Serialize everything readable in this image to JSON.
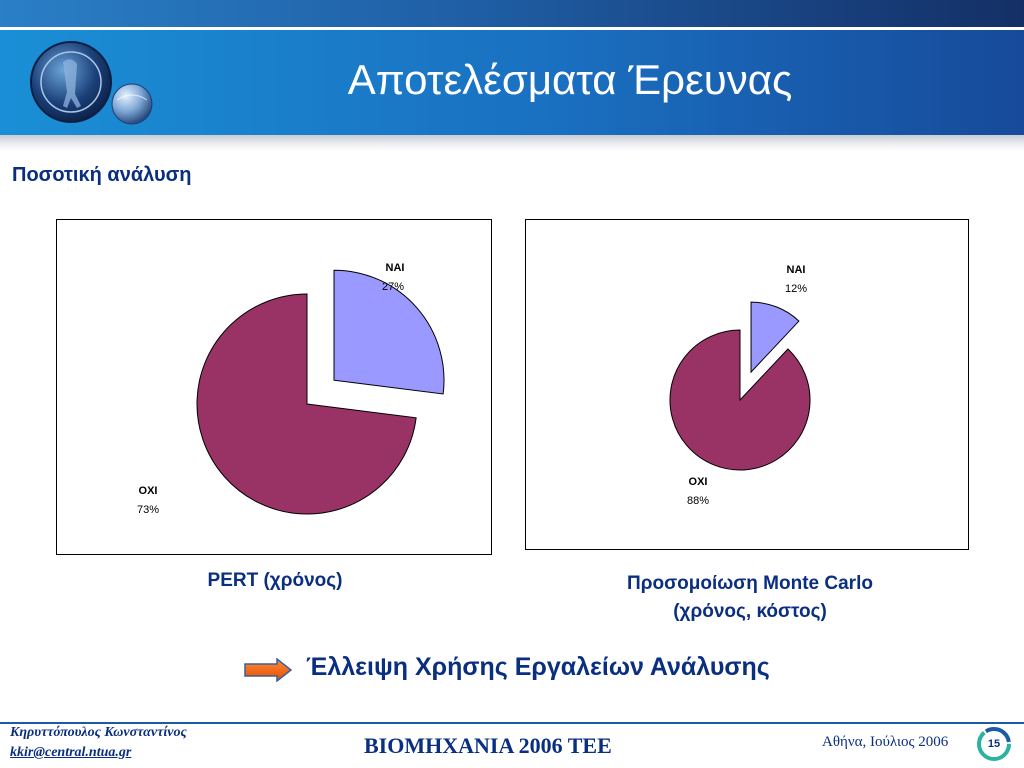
{
  "header": {
    "title": "Αποτελέσματα Έρευνας"
  },
  "subtitle": "Ποσοτική ανάλυση",
  "chart_data": [
    {
      "type": "pie",
      "categories": [
        "ΝΑΙ",
        "ΟΧΙ"
      ],
      "values": [
        27,
        73
      ],
      "labels": [
        "27%",
        "73%"
      ],
      "colors": [
        "#9999ff",
        "#993366"
      ],
      "exploded": "ΝΑΙ",
      "caption": "PERT (χρόνος)"
    },
    {
      "type": "pie",
      "categories": [
        "ΝΑΙ",
        "ΟΧΙ"
      ],
      "values": [
        12,
        88
      ],
      "labels": [
        "12%",
        "88%"
      ],
      "colors": [
        "#9999ff",
        "#993366"
      ],
      "exploded": "ΝΑΙ",
      "caption_line1": "Προσομοίωση Monte Carlo",
      "caption_line2": "(χρόνος, κόστος)"
    }
  ],
  "conclusion": "Έλλειψη Χρήσης Εργαλείων Ανάλυσης",
  "footer": {
    "author": "Κηρυττόπουλος  Κωνσταντίνος",
    "email": "kkir@central.ntua.gr",
    "event": "ΒΙΟΜΗΧΑΝΙΑ 2006 ΤΕΕ",
    "place_date": "Αθήνα, Ιούλιος 2006",
    "page": "15"
  },
  "colors": {
    "header_blue": "#1a6fc0",
    "text_navy": "#0a2f80",
    "arrow_orange": "#ff6a1a"
  },
  "icons": {
    "logo": "ntua-seal-logo",
    "arrow": "right-arrow-icon",
    "page": "page-number-badge"
  }
}
